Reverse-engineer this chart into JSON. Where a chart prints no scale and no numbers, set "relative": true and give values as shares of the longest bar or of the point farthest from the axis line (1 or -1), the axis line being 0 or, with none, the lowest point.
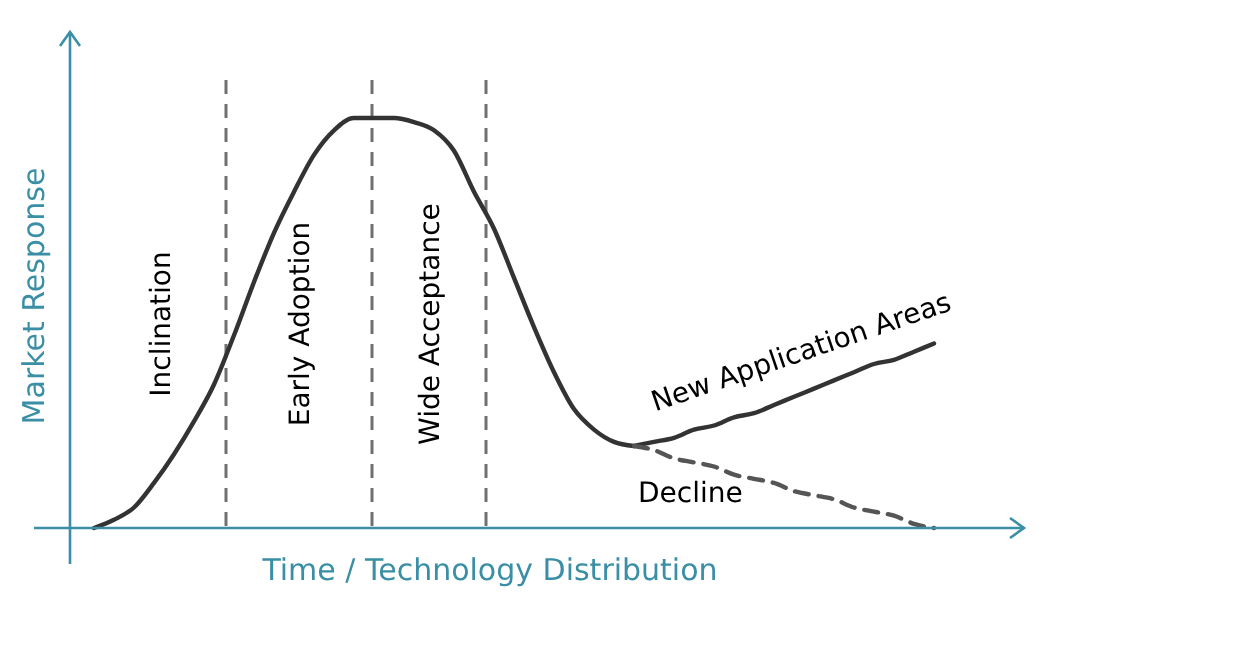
{
  "chart_data": {
    "type": "line",
    "relative": true,
    "xlabel": "Time / Technology Distribution",
    "ylabel": "Market Response",
    "categories": [
      null,
      null,
      null,
      null,
      null,
      null,
      null,
      null,
      null,
      null,
      null,
      null,
      null,
      null,
      null,
      null,
      null,
      null,
      null,
      null,
      null,
      null,
      null,
      null,
      null,
      null,
      null,
      null,
      null,
      null,
      null,
      null,
      null,
      null,
      null,
      null,
      null,
      null,
      null,
      null,
      null,
      null,
      null
    ],
    "series": [
      {
        "color": "#333333",
        "line_style": "solid",
        "values": [
          0,
          0.02,
          0.05,
          0.11,
          0.18,
          0.26,
          0.35,
          0.47,
          0.6,
          0.72,
          0.82,
          0.91,
          0.97,
          1,
          1,
          1,
          0.99,
          0.97,
          0.92,
          0.82,
          0.73,
          0.61,
          0.49,
          0.38,
          0.29,
          0.24,
          0.21,
          0.2,
          null,
          null,
          null,
          null,
          null,
          null,
          null,
          null,
          null,
          null,
          null,
          null,
          null,
          null,
          null
        ]
      },
      {
        "name": "New Application Areas",
        "color": "#333333",
        "line_style": "solid",
        "values": [
          null,
          null,
          null,
          null,
          null,
          null,
          null,
          null,
          null,
          null,
          null,
          null,
          null,
          null,
          null,
          null,
          null,
          null,
          null,
          null,
          null,
          null,
          null,
          null,
          null,
          null,
          null,
          0.2,
          0.21,
          0.22,
          0.24,
          0.25,
          0.27,
          0.28,
          0.3,
          0.32,
          0.34,
          0.36,
          0.38,
          0.4,
          0.41,
          0.43,
          0.45
        ]
      },
      {
        "name": "Decline",
        "color": "#555555",
        "line_style": "dashed",
        "values": [
          null,
          null,
          null,
          null,
          null,
          null,
          null,
          null,
          null,
          null,
          null,
          null,
          null,
          null,
          null,
          null,
          null,
          null,
          null,
          null,
          null,
          null,
          null,
          null,
          null,
          null,
          null,
          0.2,
          0.19,
          0.17,
          0.16,
          0.15,
          0.13,
          0.12,
          0.11,
          0.09,
          0.08,
          0.07,
          0.05,
          0.04,
          0.03,
          0.01,
          0
        ]
      }
    ],
    "annotations": [
      "Inclination",
      "Early Adoption",
      "Wide Acceptance"
    ]
  }
}
